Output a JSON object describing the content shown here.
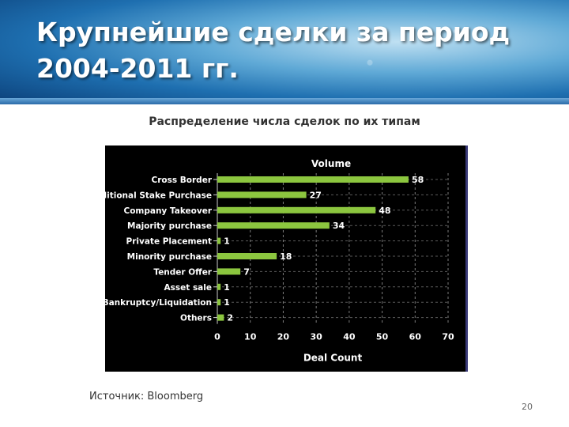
{
  "slide": {
    "title": "Крупнейшие сделки за период 2004-2011 гг.",
    "subtitle": "Распределение числа сделок по их типам",
    "source": "Источник: Bloomberg",
    "page_number": "20"
  },
  "chart_data": {
    "type": "bar",
    "orientation": "horizontal",
    "title": "Volume",
    "xlabel": "Deal Count",
    "ylabel": "",
    "categories": [
      "Cross Border",
      "Additional Stake Purchase",
      "Company Takeover",
      "Majority purchase",
      "Private Placement",
      "Minority purchase",
      "Tender Offer",
      "Asset sale",
      "Bankruptcy/Liquidation",
      "Others"
    ],
    "values": [
      58,
      27,
      48,
      34,
      1,
      18,
      7,
      1,
      1,
      2
    ],
    "xlim": [
      0,
      70
    ],
    "xticks": [
      0,
      10,
      20,
      30,
      40,
      50,
      60,
      70
    ],
    "grid": true,
    "bar_color": "#8cc63f",
    "background_color": "#000000",
    "text_color": "#ffffff"
  }
}
